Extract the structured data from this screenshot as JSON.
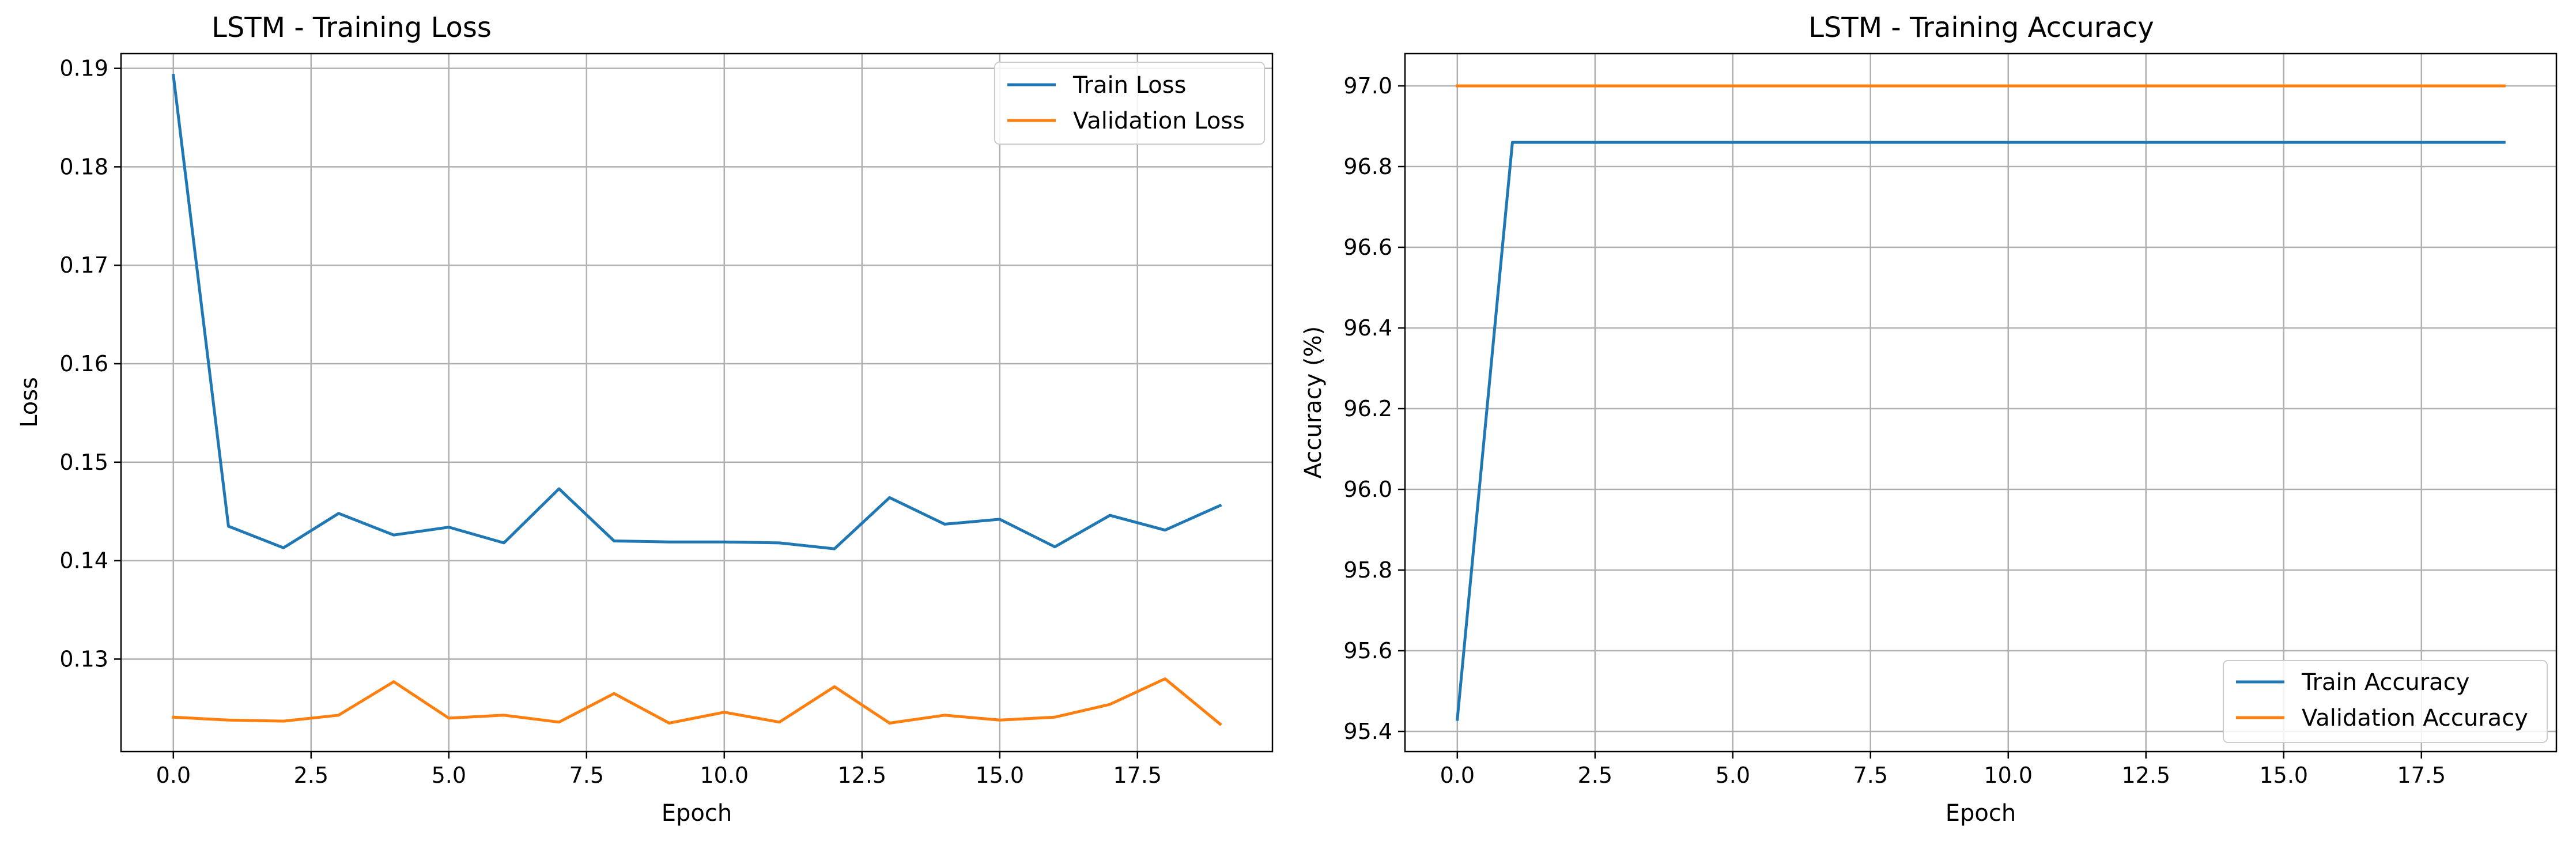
{
  "chart_data": [
    {
      "type": "line",
      "title": "LSTM - Training Loss",
      "xlabel": "Epoch",
      "ylabel": "Loss",
      "xlim": [
        -0.95,
        19.95
      ],
      "ylim": [
        0.1206,
        0.1915
      ],
      "xticks": [
        0.0,
        2.5,
        5.0,
        7.5,
        10.0,
        12.5,
        15.0,
        17.5
      ],
      "xtick_labels": [
        "0.0",
        "2.5",
        "5.0",
        "7.5",
        "10.0",
        "12.5",
        "15.0",
        "17.5"
      ],
      "yticks": [
        0.13,
        0.14,
        0.15,
        0.16,
        0.17,
        0.18,
        0.19
      ],
      "ytick_labels": [
        "0.13",
        "0.14",
        "0.15",
        "0.16",
        "0.17",
        "0.18",
        "0.19"
      ],
      "grid": true,
      "legend_position": "top-right",
      "x": [
        0,
        1,
        2,
        3,
        4,
        5,
        6,
        7,
        8,
        9,
        10,
        11,
        12,
        13,
        14,
        15,
        16,
        17,
        18,
        19
      ],
      "series": [
        {
          "name": "Train Loss",
          "color": "#1f77b4",
          "values": [
            0.1893,
            0.1435,
            0.1413,
            0.1448,
            0.1426,
            0.1434,
            0.1418,
            0.1473,
            0.142,
            0.1419,
            0.1419,
            0.1418,
            0.1412,
            0.1464,
            0.1437,
            0.1442,
            0.1414,
            0.1446,
            0.1431,
            0.1456
          ]
        },
        {
          "name": "Validation Loss",
          "color": "#ff7f0e",
          "values": [
            0.1241,
            0.1238,
            0.1237,
            0.1243,
            0.1277,
            0.124,
            0.1243,
            0.1236,
            0.1265,
            0.1235,
            0.1246,
            0.1236,
            0.1272,
            0.1235,
            0.1243,
            0.1238,
            0.1241,
            0.1254,
            0.128,
            0.1234
          ]
        }
      ]
    },
    {
      "type": "line",
      "title": "LSTM - Training Accuracy",
      "xlabel": "Epoch",
      "ylabel": "Accuracy (%)",
      "xlim": [
        -0.95,
        19.95
      ],
      "ylim": [
        95.35,
        97.08
      ],
      "xticks": [
        0.0,
        2.5,
        5.0,
        7.5,
        10.0,
        12.5,
        15.0,
        17.5
      ],
      "xtick_labels": [
        "0.0",
        "2.5",
        "5.0",
        "7.5",
        "10.0",
        "12.5",
        "15.0",
        "17.5"
      ],
      "yticks": [
        95.4,
        95.6,
        95.8,
        96.0,
        96.2,
        96.4,
        96.6,
        96.8,
        97.0
      ],
      "ytick_labels": [
        "95.4",
        "95.6",
        "95.8",
        "96.0",
        "96.2",
        "96.4",
        "96.6",
        "96.8",
        "97.0"
      ],
      "grid": true,
      "legend_position": "bottom-right",
      "x": [
        0,
        1,
        2,
        3,
        4,
        5,
        6,
        7,
        8,
        9,
        10,
        11,
        12,
        13,
        14,
        15,
        16,
        17,
        18,
        19
      ],
      "series": [
        {
          "name": "Train Accuracy",
          "color": "#1f77b4",
          "values": [
            95.43,
            96.86,
            96.86,
            96.86,
            96.86,
            96.86,
            96.86,
            96.86,
            96.86,
            96.86,
            96.86,
            96.86,
            96.86,
            96.86,
            96.86,
            96.86,
            96.86,
            96.86,
            96.86,
            96.86
          ]
        },
        {
          "name": "Validation Accuracy",
          "color": "#ff7f0e",
          "values": [
            97.0,
            97.0,
            97.0,
            97.0,
            97.0,
            97.0,
            97.0,
            97.0,
            97.0,
            97.0,
            97.0,
            97.0,
            97.0,
            97.0,
            97.0,
            97.0,
            97.0,
            97.0,
            97.0,
            97.0
          ]
        }
      ]
    }
  ]
}
